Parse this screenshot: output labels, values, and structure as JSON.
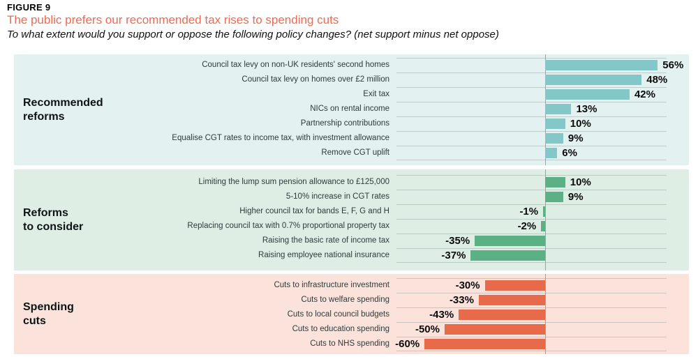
{
  "header": {
    "figure_label": "FIGURE 9",
    "title": "The public prefers our recommended tax rises to spending cuts",
    "subtitle": "To what extent would you support or oppose the following policy changes? (net support minus net oppose)"
  },
  "chart_data": {
    "type": "bar",
    "orientation": "horizontal",
    "unit": "percent net support",
    "xlim": [
      -67,
      62
    ],
    "grid": true,
    "zero_line": true,
    "legend_position": "none",
    "sections": [
      {
        "name": "Recommended\nreforms",
        "panel_bg": "#e4f1f1",
        "bar_color": "#83c7c9",
        "categories": [
          "Council tax levy on non-UK residents' second homes",
          "Council tax levy on homes over £2 million",
          "Exit tax",
          "NICs on rental income",
          "Partnership contributions",
          "Equalise CGT rates to income tax, with investment allowance",
          "Remove CGT uplift"
        ],
        "values": [
          56,
          48,
          42,
          13,
          10,
          9,
          6
        ],
        "labels": [
          "56%",
          "48%",
          "42%",
          "13%",
          "10%",
          "9%",
          "6%"
        ]
      },
      {
        "name": "Reforms\nto consider",
        "panel_bg": "#deeee5",
        "bar_color": "#5bb086",
        "categories": [
          "Limiting the lump sum pension allowance to £125,000",
          "5-10% increase in CGT rates",
          "Higher council tax for bands E, F, G and H",
          "Replacing council tax with 0.7% proportional property tax",
          "Raising the basic rate of income tax",
          "Raising employee national insurance"
        ],
        "values": [
          10,
          9,
          -1,
          -2,
          -35,
          -37
        ],
        "labels": [
          "10%",
          "9%",
          "-1%",
          "-2%",
          "-35%",
          "-37%"
        ]
      },
      {
        "name": "Spending\ncuts",
        "panel_bg": "#fbe3dc",
        "bar_color": "#e76a4b",
        "categories": [
          "Cuts to infrastructure investment",
          "Cuts to welfare spending",
          "Cuts to local council budgets",
          "Cuts to education spending",
          "Cuts to NHS spending"
        ],
        "values": [
          -30,
          -33,
          -43,
          -50,
          -60
        ],
        "labels": [
          "-30%",
          "-33%",
          "-43%",
          "-50%",
          "-60%"
        ]
      }
    ]
  }
}
